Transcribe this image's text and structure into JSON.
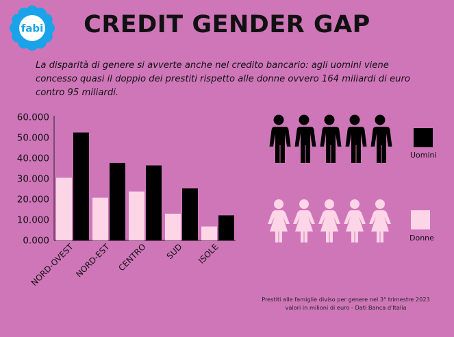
{
  "logo": {
    "text": "fabi",
    "color": "#1aa3e8"
  },
  "title": "CREDIT GENDER GAP",
  "intro": "La disparità di genere si avverte anche nel credito bancario: agli uomini viene concesso quasi il doppio dei prestiti rispetto alle donne ovvero 164 miliardi di euro contro 95 miliardi.",
  "colors": {
    "background": "#cf76b9",
    "uomini": "#000000",
    "donne": "#fcd5e6"
  },
  "legend": {
    "uomini": "Uomini",
    "donne": "Donne"
  },
  "icons": {
    "men": "man-figure-icon",
    "women": "woman-figure-icon"
  },
  "note": {
    "line1": "Prestiti alle famiglie diviso per genere nel 3° trimestre 2023",
    "line2": "valori in milioni di euro - Dati Banca d'Italia"
  },
  "chart_data": {
    "type": "bar",
    "categories": [
      "NORD-OVEST",
      "NORD-EST",
      "CENTRO",
      "SUD",
      "ISOLE"
    ],
    "series": [
      {
        "name": "Donne",
        "color": "#fcd5e6",
        "values": [
          30500,
          20800,
          23800,
          13000,
          6800
        ]
      },
      {
        "name": "Uomini",
        "color": "#000000",
        "values": [
          52500,
          37700,
          36500,
          25300,
          12200
        ]
      }
    ],
    "yticks": [
      "0.000",
      "10.000",
      "20.000",
      "30.000",
      "40.000",
      "50.000",
      "60.000"
    ],
    "ylim": [
      0,
      60000
    ],
    "grid": false,
    "legend_position": "right"
  }
}
